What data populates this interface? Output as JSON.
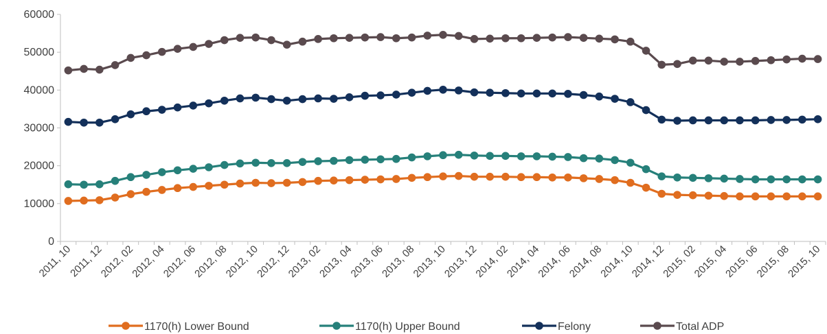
{
  "chart_data": {
    "type": "line",
    "title": "",
    "xlabel": "",
    "ylabel": "",
    "ylim": [
      0,
      60000
    ],
    "yticks": [
      0,
      10000,
      20000,
      30000,
      40000,
      50000,
      60000
    ],
    "grid": false,
    "legend_position": "bottom",
    "categories": [
      "2011, 10",
      "2011, 11",
      "2011, 12",
      "2012, 01",
      "2012, 02",
      "2012, 03",
      "2012, 04",
      "2012, 05",
      "2012, 06",
      "2012, 07",
      "2012, 08",
      "2012, 09",
      "2012, 10",
      "2012, 11",
      "2012, 12",
      "2013, 01",
      "2013, 02",
      "2013, 03",
      "2013, 04",
      "2013, 05",
      "2013, 06",
      "2013, 07",
      "2013, 08",
      "2013, 09",
      "2013, 10",
      "2013, 11",
      "2013, 12",
      "2014, 01",
      "2014, 02",
      "2014, 03",
      "2014, 04",
      "2014, 05",
      "2014, 06",
      "2014, 07",
      "2014, 08",
      "2014, 09",
      "2014, 10",
      "2014, 11",
      "2014, 12",
      "2015, 01",
      "2015, 02",
      "2015, 03",
      "2015, 04",
      "2015, 05",
      "2015, 06",
      "2015, 07",
      "2015, 08",
      "2015, 09",
      "2015, 10"
    ],
    "tick_labels": [
      "2011, 10",
      "2011, 12",
      "2012, 02",
      "2012, 04",
      "2012, 06",
      "2012, 08",
      "2012, 10",
      "2012, 12",
      "2013, 02",
      "2013, 04",
      "2013, 06",
      "2013, 08",
      "2013, 10",
      "2013, 12",
      "2014, 02",
      "2014, 04",
      "2014, 06",
      "2014, 08",
      "2014, 10",
      "2014, 12",
      "2015, 02",
      "2015, 04",
      "2015, 06",
      "2015, 08",
      "2015, 10"
    ],
    "series": [
      {
        "name": "1170(h) Lower Bound",
        "color": "#e06d1f",
        "values": [
          10700,
          10800,
          10900,
          11600,
          12500,
          13100,
          13600,
          14100,
          14400,
          14700,
          15000,
          15300,
          15500,
          15400,
          15500,
          15700,
          16000,
          16100,
          16200,
          16300,
          16400,
          16500,
          16800,
          17000,
          17200,
          17300,
          17100,
          17100,
          17100,
          17000,
          17000,
          16900,
          16900,
          16700,
          16500,
          16200,
          15500,
          14200,
          12600,
          12300,
          12200,
          12100,
          12000,
          11900,
          11900,
          11900,
          11900,
          11900,
          11900
        ]
      },
      {
        "name": "1170(h) Upper Bound",
        "color": "#26807a",
        "values": [
          15100,
          15000,
          15100,
          16000,
          17000,
          17600,
          18300,
          18800,
          19200,
          19600,
          20200,
          20600,
          20800,
          20700,
          20700,
          21000,
          21200,
          21300,
          21500,
          21600,
          21700,
          21800,
          22200,
          22500,
          22800,
          22900,
          22700,
          22600,
          22600,
          22500,
          22500,
          22400,
          22300,
          22000,
          21900,
          21500,
          20800,
          19100,
          17200,
          16900,
          16800,
          16700,
          16600,
          16500,
          16400,
          16400,
          16400,
          16400,
          16400
        ]
      },
      {
        "name": "Felony",
        "color": "#13305a",
        "values": [
          31600,
          31400,
          31400,
          32300,
          33600,
          34400,
          34800,
          35400,
          35900,
          36500,
          37200,
          37800,
          38000,
          37600,
          37200,
          37600,
          37800,
          37700,
          38100,
          38500,
          38600,
          38800,
          39300,
          39800,
          40100,
          39900,
          39400,
          39300,
          39200,
          39100,
          39100,
          39100,
          39000,
          38700,
          38300,
          37700,
          36800,
          34700,
          32200,
          31900,
          32000,
          32000,
          32000,
          32000,
          32000,
          32100,
          32100,
          32200,
          32300
        ]
      },
      {
        "name": "Total ADP",
        "color": "#5a4a4e",
        "values": [
          45200,
          45600,
          45400,
          46600,
          48500,
          49200,
          50100,
          50900,
          51400,
          52200,
          53200,
          53800,
          53900,
          53200,
          52000,
          52800,
          53500,
          53700,
          53800,
          53900,
          54000,
          53700,
          53900,
          54400,
          54600,
          54300,
          53500,
          53600,
          53700,
          53700,
          53800,
          53900,
          54000,
          53800,
          53600,
          53400,
          52800,
          50400,
          46700,
          46900,
          47800,
          47800,
          47500,
          47500,
          47700,
          47900,
          48100,
          48300,
          48200
        ]
      }
    ]
  }
}
